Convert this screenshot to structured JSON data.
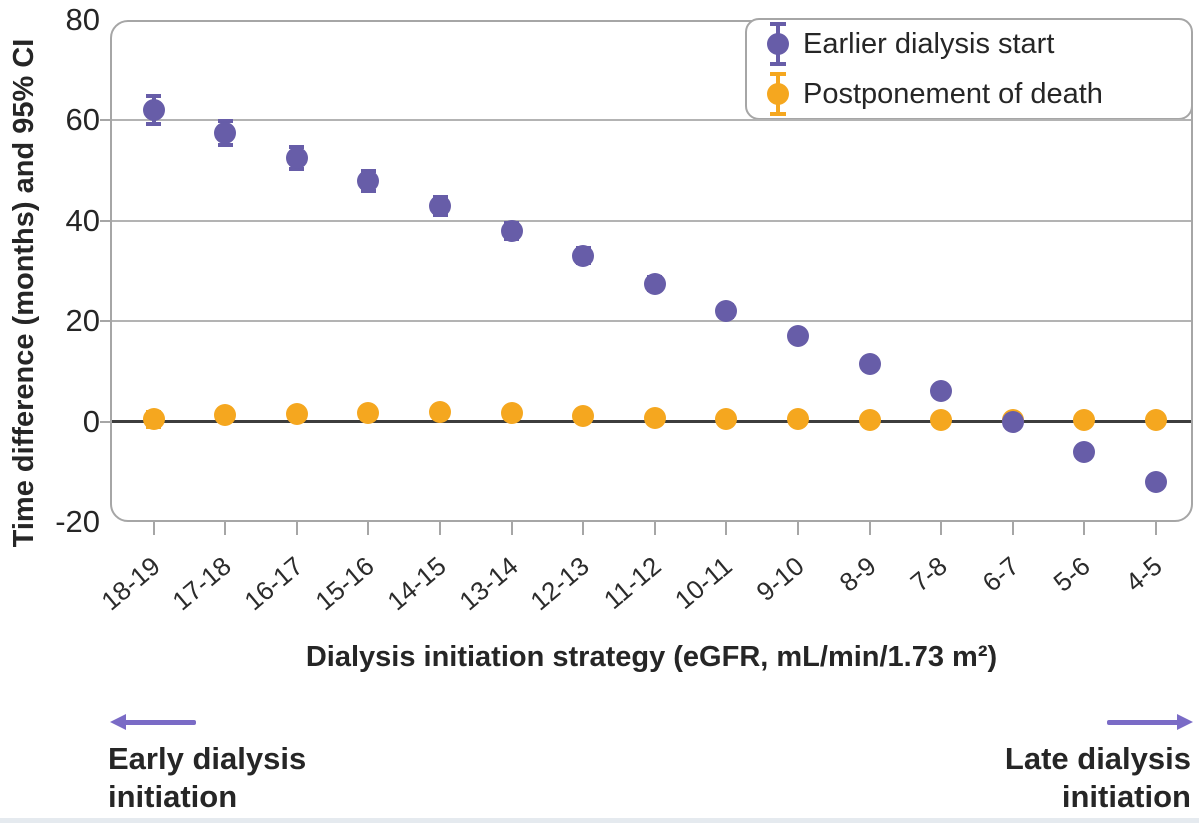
{
  "chart_data": {
    "type": "scatter",
    "categories": [
      "18-19",
      "17-18",
      "16-17",
      "15-16",
      "14-15",
      "13-14",
      "12-13",
      "11-12",
      "10-11",
      "9-10",
      "8-9",
      "7-8",
      "6-7",
      "5-6",
      "4-5"
    ],
    "series": [
      {
        "name": "Earlier dialysis start",
        "color": "#675da8",
        "values": [
          62,
          57.5,
          52.5,
          48,
          43,
          38,
          33,
          27.5,
          22,
          17,
          11.5,
          6,
          0,
          -6,
          -12
        ],
        "ci_half": [
          2.8,
          2.4,
          2.2,
          2.0,
          1.8,
          1.6,
          1.5,
          1.3,
          1.2,
          1.0,
          0.9,
          0.8,
          0.7,
          0.7,
          0.8
        ]
      },
      {
        "name": "Postponement of death",
        "color": "#f5a71f",
        "values": [
          0.5,
          1.3,
          1.6,
          1.8,
          1.9,
          1.7,
          1.2,
          0.8,
          0.6,
          0.5,
          0.4,
          0.4,
          0.4,
          0.3,
          0.3
        ],
        "ci_half": [
          1.5,
          0.9,
          0.9,
          0.9,
          0.9,
          0.8,
          0.7,
          0.6,
          0.5,
          0.4,
          0.4,
          0.4,
          0.3,
          0.3,
          0.3
        ]
      }
    ],
    "xlabel": "Dialysis initiation strategy (eGFR, mL/min/1.73 m²)",
    "ylabel": "Time difference (months) and 95% CI",
    "ylim": [
      -20,
      80
    ],
    "yticks": [
      80,
      60,
      40,
      20,
      0,
      -20
    ],
    "grid": "horizontal",
    "legend_position": "top-right"
  },
  "annotations": {
    "early": {
      "line1": "Early dialysis",
      "line2": "initiation"
    },
    "late": {
      "line1": "Late dialysis",
      "line2": "initiation"
    }
  },
  "colors": {
    "purple_marker": "#675da8",
    "orange_marker": "#f5a71f",
    "arrow_purple": "#7a6bc6",
    "gridline": "#b3b3b3",
    "zero_line": "#3d3d3d",
    "plot_border": "#a6a6a6",
    "bottom_strip": "#e5eaef"
  }
}
